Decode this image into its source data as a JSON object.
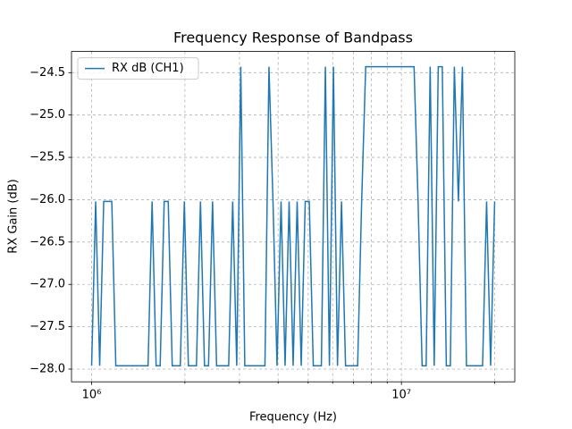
{
  "chart_data": {
    "type": "line",
    "title": "Frequency Response of Bandpass",
    "xlabel": "Frequency (Hz)",
    "ylabel": "RX Gain (dB)",
    "xscale": "log",
    "grid": true,
    "legend": "upper left",
    "x": [
      1000000,
      1030400,
      1061700,
      1094000,
      1127300,
      1161600,
      1196900,
      1233300,
      1270800,
      1309500,
      1349300,
      1390400,
      1432700,
      1476200,
      1521100,
      1567400,
      1615000,
      1664200,
      1714800,
      1767000,
      1820600,
      1876000,
      1933100,
      1991900,
      2052400,
      2114900,
      2179200,
      2245500,
      2313800,
      2384200,
      2456600,
      2531300,
      2608300,
      2687600,
      2769400,
      2853600,
      2940400,
      3029800,
      3122000,
      3216900,
      3314400,
      3415200,
      3519100,
      3626100,
      3736400,
      3850000,
      3967100,
      4087800,
      4212100,
      4340200,
      4472100,
      4608100,
      4748300,
      4892700,
      5041500,
      5194800,
      5352800,
      5515600,
      5683300,
      5856200,
      6034200,
      6217800,
      6406900,
      6601700,
      6802500,
      7009400,
      7222600,
      7442200,
      7668600,
      7901800,
      8142100,
      8389700,
      8644900,
      8907800,
      9178700,
      9457400,
      9745000,
      10041000,
      10347000,
      10661000,
      10986000,
      11320000,
      11664000,
      12019000,
      12384000,
      12761000,
      13149000,
      13549000,
      13961000,
      14386000,
      14823000,
      15274000,
      15739000,
      16217000,
      16711000,
      17219000,
      17743000,
      18282000,
      18838000,
      19411000,
      20000000
    ],
    "series": [
      {
        "name": "RX dB (CH1)",
        "color": "#1f77b4",
        "values": [
          -27.96,
          -26.02,
          -27.96,
          -26.02,
          -26.02,
          -26.02,
          -27.96,
          -27.96,
          -27.96,
          -27.96,
          -27.96,
          -27.96,
          -27.96,
          -27.96,
          -27.96,
          -26.02,
          -27.96,
          -27.96,
          -26.02,
          -26.02,
          -27.96,
          -27.96,
          -27.96,
          -26.02,
          -27.96,
          -27.96,
          -27.96,
          -26.02,
          -27.96,
          -27.96,
          -26.02,
          -27.96,
          -27.96,
          -27.96,
          -27.96,
          -26.02,
          -27.96,
          -24.43,
          -27.96,
          -27.96,
          -27.96,
          -27.96,
          -27.96,
          -27.96,
          -24.43,
          -26.02,
          -27.96,
          -26.02,
          -27.96,
          -26.02,
          -27.96,
          -26.02,
          -27.96,
          -26.02,
          -26.02,
          -27.96,
          -27.96,
          -27.96,
          -24.43,
          -27.96,
          -24.43,
          -27.96,
          -26.02,
          -27.96,
          -27.96,
          -27.96,
          -27.96,
          -26.02,
          -24.43,
          -24.43,
          -24.43,
          -24.43,
          -24.43,
          -24.43,
          -24.43,
          -24.43,
          -24.43,
          -24.43,
          -24.43,
          -24.43,
          -24.43,
          -26.02,
          -27.96,
          -27.96,
          -24.43,
          -27.96,
          -24.43,
          -24.43,
          -27.96,
          -27.96,
          -24.43,
          -26.02,
          -24.43,
          -27.96,
          -27.96,
          -27.96,
          -27.96,
          -27.96,
          -26.02,
          -27.96,
          -26.02
        ]
      }
    ],
    "xlim": [
      861000,
      23230000
    ],
    "xticks": [
      {
        "value": 1000000,
        "label": "10⁶"
      },
      {
        "value": 10000000,
        "label": "10⁷"
      }
    ],
    "xminorticks": [
      2000000,
      3000000,
      4000000,
      5000000,
      6000000,
      7000000,
      8000000,
      9000000,
      20000000
    ],
    "ylim": [
      -28.15,
      -24.25
    ],
    "yticks": [
      {
        "value": -28,
        "label": "−28.0"
      },
      {
        "value": -27.5,
        "label": "−27.5"
      },
      {
        "value": -27,
        "label": "−27.0"
      },
      {
        "value": -26.5,
        "label": "−26.5"
      },
      {
        "value": -26,
        "label": "−26.0"
      },
      {
        "value": -25.5,
        "label": "−25.5"
      },
      {
        "value": -25,
        "label": "−25.0"
      },
      {
        "value": -24.5,
        "label": "−24.5"
      }
    ]
  }
}
